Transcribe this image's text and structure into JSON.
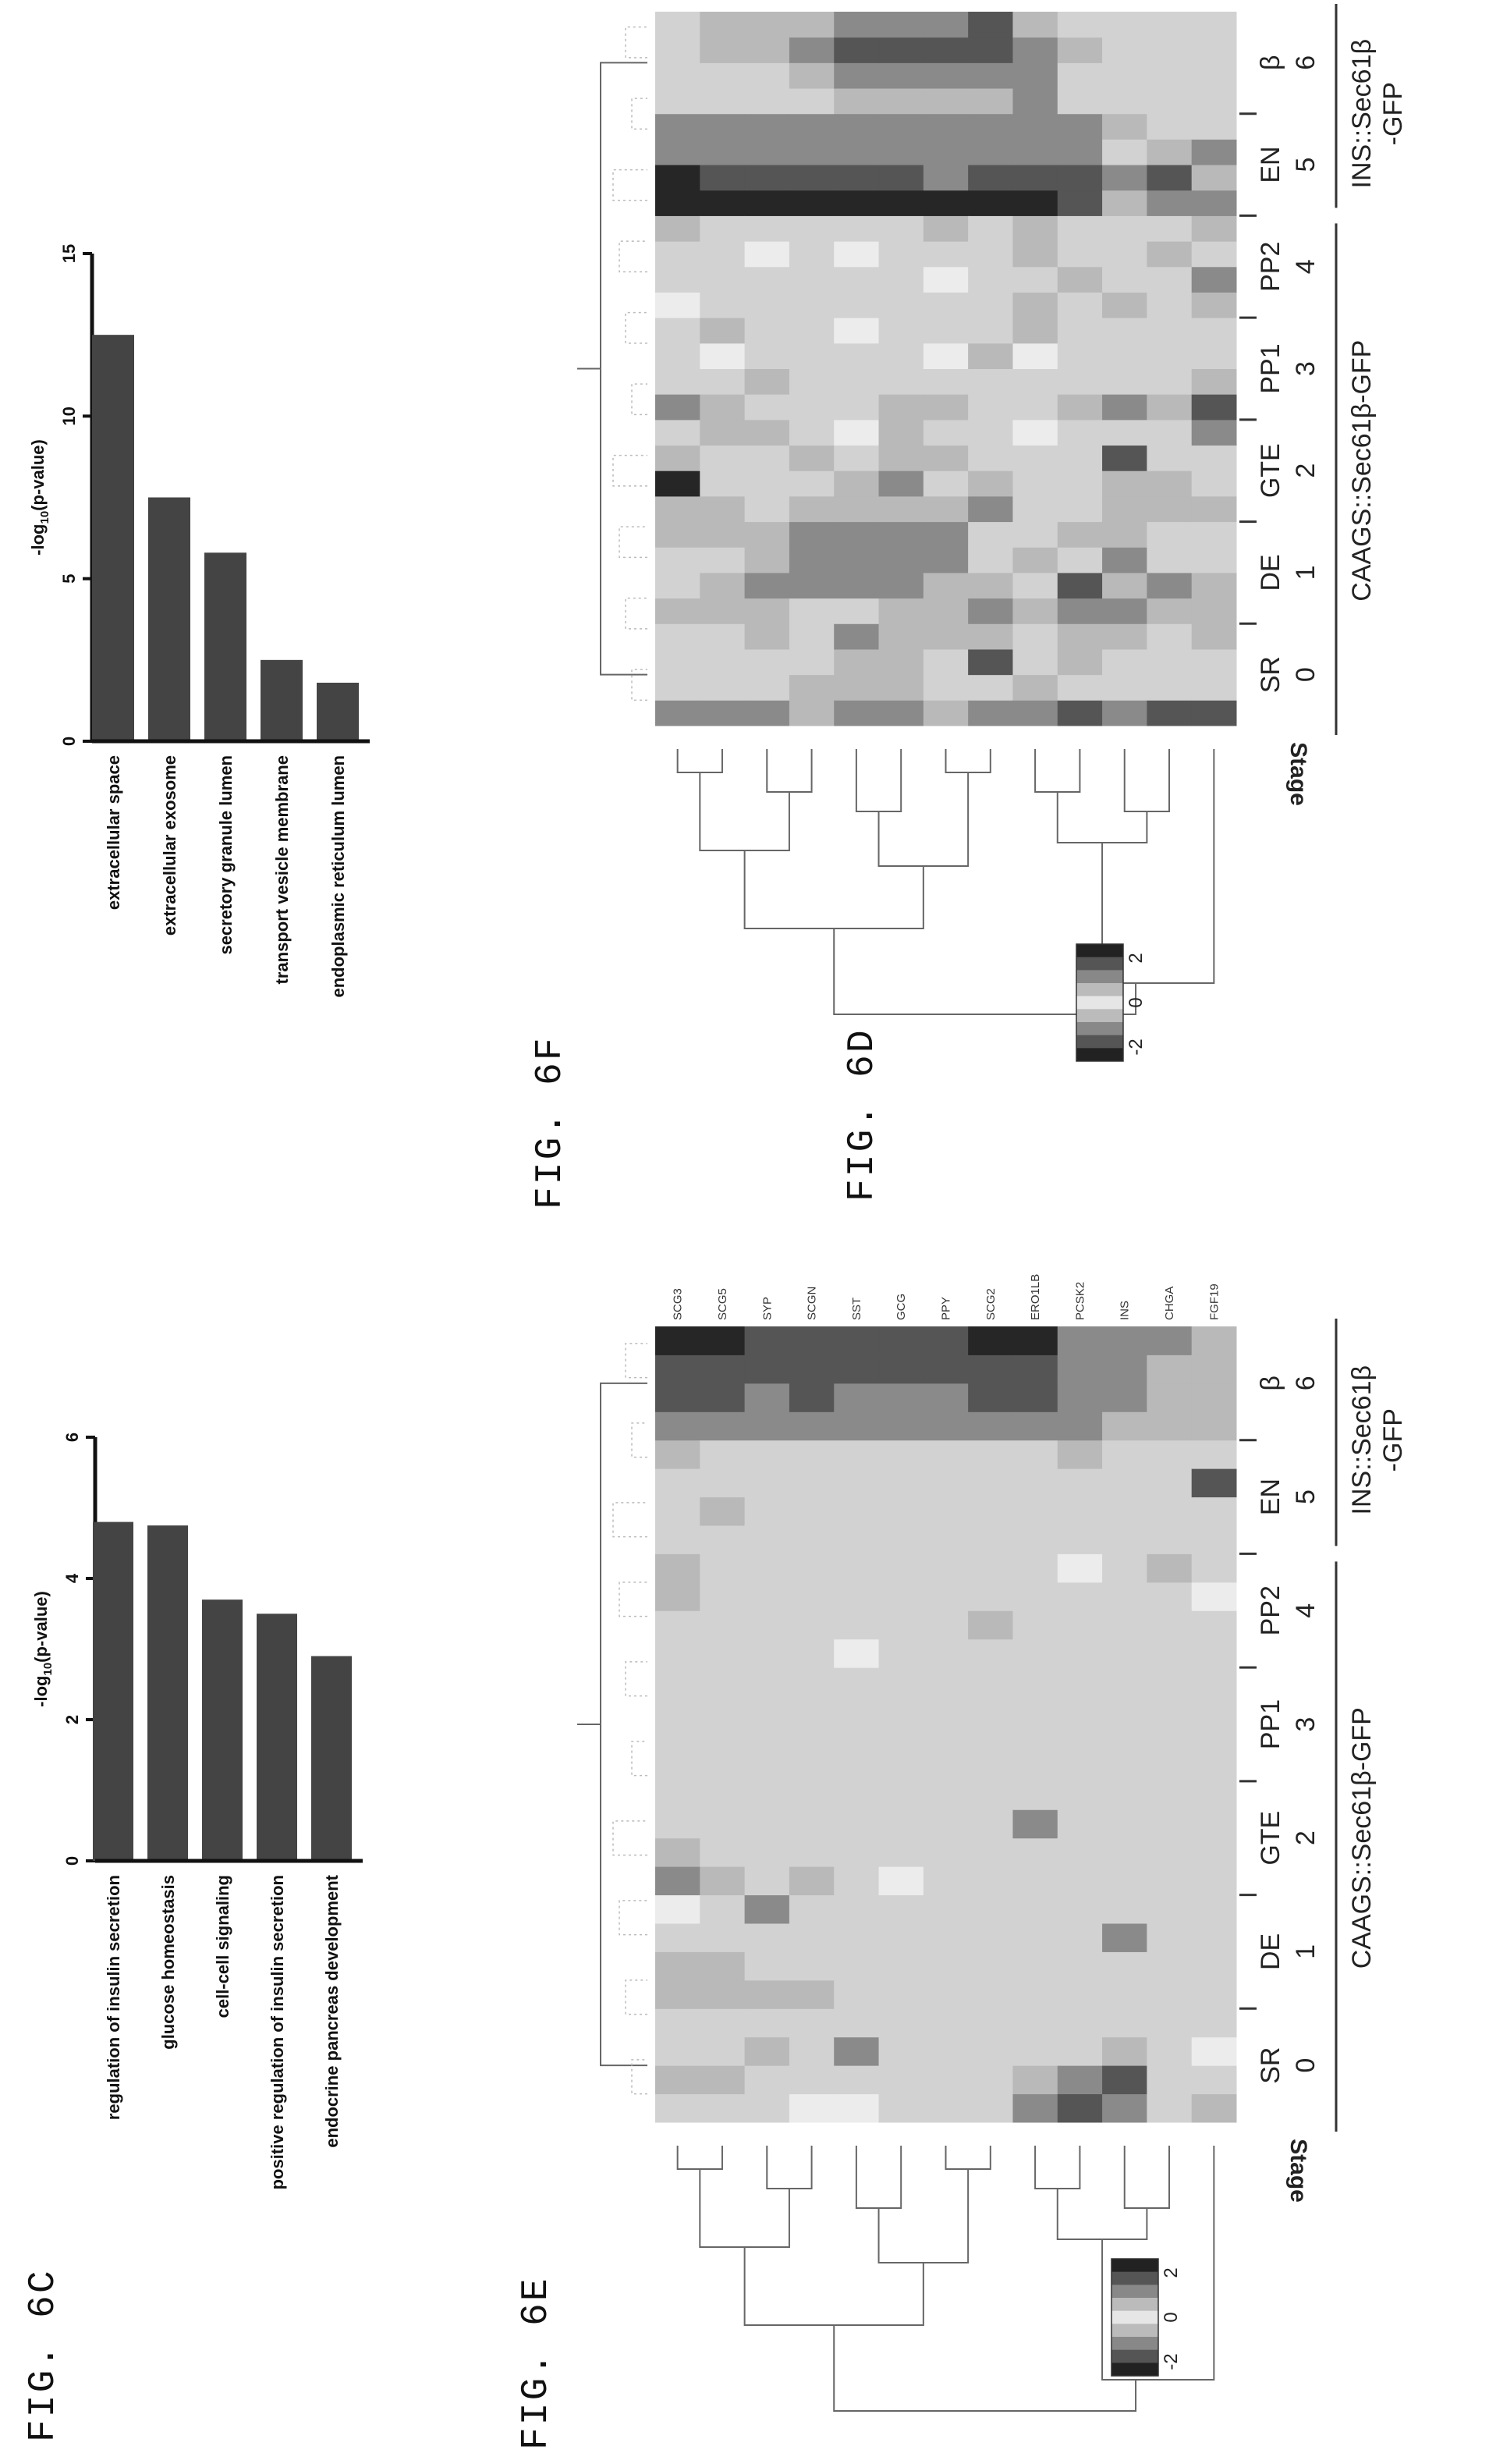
{
  "figures": {
    "c": {
      "label": "FIG. 6C"
    },
    "d": {
      "label": "FIG. 6D"
    },
    "e": {
      "label": "FIG. 6E"
    },
    "f": {
      "label": "FIG. 6F"
    }
  },
  "heatmap_common": {
    "stage_word": "Stage",
    "stages": [
      "SR",
      "DE",
      "GTE",
      "PP1",
      "PP2",
      "EN",
      "β"
    ],
    "stage_nums": [
      "0",
      "1",
      "2",
      "3",
      "4",
      "5",
      "6"
    ],
    "group1": "CAAGS::Sec61β-GFP",
    "group2_line1": "INS::Sec61β",
    "group2_line2": "-GFP",
    "colorbar_labels": [
      "2",
      "0",
      "-2"
    ]
  },
  "chart_data": [
    {
      "id": "6C",
      "type": "bar",
      "title": "",
      "xlabel": "",
      "ylabel": "-log10(p-value)",
      "categories": [
        "regulation of insulin secretion",
        "glucose homeostasis",
        "cell-cell signaling",
        "positive regulation of insulin secretion",
        "endocrine pancreas development"
      ],
      "values": [
        4.8,
        4.75,
        3.7,
        3.5,
        2.9
      ],
      "ylim": [
        0,
        6
      ],
      "ticks": [
        0,
        2,
        4,
        6
      ],
      "grid": false
    },
    {
      "id": "6D",
      "type": "bar",
      "title": "",
      "xlabel": "",
      "ylabel": "-log10(p-value)",
      "categories": [
        "extracellular space",
        "extracellular exosome",
        "secretory granule lumen",
        "transport vesicle membrane",
        "endoplasmic reticulum lumen"
      ],
      "values": [
        12.5,
        7.5,
        5.8,
        2.5,
        1.8
      ],
      "ylim": [
        0,
        15
      ],
      "ticks": [
        0,
        5,
        10,
        15
      ],
      "grid": false
    },
    {
      "id": "6E",
      "type": "heatmap",
      "title": "",
      "genes": [
        "SCG3",
        "SCG5",
        "SYP",
        "SCGN",
        "SST",
        "GCG",
        "PPY",
        "SCG2",
        "ERO1LB",
        "PCSK2",
        "INS",
        "CHGA",
        "FGF19"
      ],
      "samples_per_stage": 4,
      "value_range": [
        -2,
        2
      ],
      "values": [
        [
          0,
          1,
          0,
          0,
          1,
          1,
          0,
          -1,
          2,
          1,
          0,
          0,
          0,
          0,
          0,
          0,
          0,
          0,
          1,
          1,
          0,
          0,
          0,
          1,
          2,
          3,
          3,
          4
        ],
        [
          0,
          1,
          0,
          0,
          1,
          1,
          0,
          0,
          1,
          0,
          0,
          0,
          0,
          0,
          0,
          0,
          0,
          0,
          0,
          0,
          0,
          1,
          0,
          0,
          2,
          3,
          3,
          4
        ],
        [
          0,
          0,
          1,
          0,
          1,
          0,
          0,
          2,
          0,
          0,
          0,
          0,
          0,
          0,
          0,
          0,
          0,
          0,
          0,
          0,
          0,
          0,
          0,
          0,
          2,
          2,
          3,
          3
        ],
        [
          -1,
          0,
          0,
          0,
          1,
          0,
          0,
          0,
          1,
          0,
          0,
          0,
          0,
          0,
          0,
          0,
          0,
          0,
          0,
          0,
          0,
          0,
          0,
          0,
          2,
          3,
          3,
          3
        ],
        [
          -1,
          0,
          2,
          0,
          0,
          0,
          0,
          0,
          0,
          0,
          0,
          0,
          0,
          0,
          0,
          0,
          -1,
          0,
          0,
          0,
          0,
          0,
          0,
          0,
          2,
          2,
          3,
          3
        ],
        [
          0,
          0,
          0,
          0,
          0,
          0,
          0,
          0,
          -1,
          0,
          0,
          0,
          0,
          0,
          0,
          0,
          0,
          0,
          0,
          0,
          0,
          0,
          0,
          0,
          2,
          2,
          3,
          3
        ],
        [
          0,
          0,
          0,
          0,
          0,
          0,
          0,
          0,
          0,
          0,
          0,
          0,
          0,
          0,
          0,
          0,
          0,
          0,
          0,
          0,
          0,
          0,
          0,
          0,
          2,
          2,
          3,
          3
        ],
        [
          0,
          0,
          0,
          0,
          0,
          0,
          0,
          0,
          0,
          0,
          0,
          0,
          0,
          0,
          0,
          0,
          0,
          1,
          0,
          0,
          0,
          0,
          0,
          0,
          2,
          3,
          3,
          4
        ],
        [
          2,
          1,
          0,
          0,
          0,
          0,
          0,
          0,
          0,
          0,
          2,
          0,
          0,
          0,
          0,
          0,
          0,
          0,
          0,
          0,
          0,
          0,
          0,
          0,
          2,
          3,
          3,
          4
        ],
        [
          3,
          2,
          0,
          0,
          0,
          0,
          0,
          0,
          0,
          0,
          0,
          0,
          0,
          0,
          0,
          0,
          0,
          0,
          0,
          -1,
          0,
          0,
          0,
          1,
          2,
          2,
          2,
          2
        ],
        [
          2,
          3,
          1,
          0,
          0,
          0,
          2,
          0,
          0,
          0,
          0,
          0,
          0,
          0,
          0,
          0,
          0,
          0,
          0,
          0,
          0,
          0,
          0,
          0,
          1,
          2,
          2,
          2
        ],
        [
          0,
          0,
          0,
          0,
          0,
          0,
          0,
          0,
          0,
          0,
          0,
          0,
          0,
          0,
          0,
          0,
          0,
          0,
          0,
          1,
          0,
          0,
          0,
          0,
          1,
          1,
          1,
          2
        ],
        [
          1,
          0,
          -1,
          0,
          0,
          0,
          0,
          0,
          0,
          0,
          0,
          0,
          0,
          0,
          0,
          0,
          0,
          0,
          -1,
          0,
          0,
          0,
          3,
          0,
          1,
          1,
          1,
          1
        ]
      ]
    },
    {
      "id": "6F",
      "type": "heatmap",
      "title": "",
      "rows": 13,
      "samples_per_stage": 4,
      "value_range": [
        -2,
        2
      ],
      "values": [
        [
          2,
          0,
          0,
          0,
          1,
          0,
          0,
          1,
          1,
          4,
          1,
          0,
          2,
          0,
          0,
          0,
          -1,
          0,
          0,
          1,
          4,
          4,
          2,
          2,
          0,
          0,
          0,
          0
        ],
        [
          2,
          0,
          0,
          0,
          1,
          1,
          0,
          1,
          1,
          0,
          0,
          1,
          1,
          0,
          -1,
          1,
          0,
          0,
          0,
          0,
          4,
          3,
          2,
          2,
          0,
          0,
          1,
          1
        ],
        [
          2,
          0,
          0,
          1,
          1,
          2,
          1,
          1,
          0,
          0,
          0,
          1,
          0,
          1,
          0,
          0,
          0,
          0,
          -1,
          0,
          4,
          3,
          2,
          2,
          0,
          0,
          1,
          1
        ],
        [
          1,
          1,
          0,
          0,
          0,
          2,
          2,
          2,
          1,
          0,
          1,
          0,
          0,
          0,
          0,
          0,
          0,
          0,
          0,
          0,
          4,
          3,
          2,
          2,
          0,
          1,
          2,
          1
        ],
        [
          2,
          1,
          1,
          2,
          0,
          2,
          2,
          2,
          1,
          1,
          0,
          -1,
          0,
          0,
          0,
          -1,
          0,
          0,
          -1,
          0,
          4,
          3,
          2,
          2,
          1,
          2,
          3,
          2
        ],
        [
          2,
          1,
          1,
          1,
          1,
          2,
          2,
          2,
          1,
          2,
          1,
          1,
          1,
          0,
          0,
          0,
          0,
          0,
          0,
          0,
          4,
          3,
          2,
          2,
          1,
          2,
          3,
          2
        ],
        [
          1,
          0,
          0,
          1,
          1,
          1,
          2,
          2,
          1,
          0,
          1,
          0,
          1,
          0,
          -1,
          0,
          0,
          -1,
          0,
          1,
          4,
          2,
          2,
          2,
          1,
          2,
          3,
          2
        ],
        [
          2,
          0,
          3,
          1,
          2,
          1,
          0,
          0,
          2,
          1,
          0,
          0,
          0,
          0,
          1,
          0,
          0,
          0,
          0,
          0,
          4,
          3,
          2,
          2,
          1,
          2,
          3,
          3
        ],
        [
          2,
          1,
          0,
          0,
          1,
          0,
          1,
          0,
          0,
          0,
          0,
          -1,
          0,
          0,
          -1,
          1,
          1,
          0,
          1,
          1,
          4,
          3,
          2,
          2,
          2,
          2,
          2,
          1
        ],
        [
          3,
          0,
          1,
          1,
          2,
          3,
          0,
          1,
          0,
          0,
          0,
          0,
          1,
          0,
          0,
          0,
          0,
          1,
          0,
          0,
          3,
          3,
          2,
          2,
          0,
          0,
          1,
          0
        ],
        [
          2,
          0,
          0,
          1,
          2,
          1,
          2,
          1,
          1,
          1,
          3,
          0,
          2,
          0,
          0,
          0,
          1,
          0,
          0,
          0,
          1,
          2,
          0,
          1,
          0,
          0,
          0,
          0
        ],
        [
          3,
          0,
          0,
          0,
          1,
          2,
          0,
          0,
          1,
          1,
          0,
          0,
          1,
          0,
          0,
          0,
          0,
          0,
          1,
          0,
          2,
          3,
          1,
          0,
          0,
          0,
          0,
          0
        ],
        [
          3,
          0,
          0,
          1,
          1,
          1,
          0,
          0,
          1,
          0,
          0,
          2,
          3,
          1,
          0,
          0,
          1,
          2,
          0,
          1,
          2,
          1,
          2,
          0,
          0,
          0,
          0,
          0
        ]
      ]
    }
  ]
}
